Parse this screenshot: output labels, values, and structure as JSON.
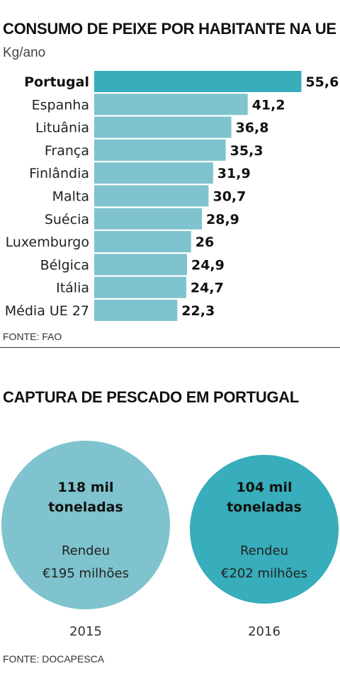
{
  "chart_data": [
    {
      "type": "bar",
      "orientation": "horizontal",
      "title": "CONSUMO DE PEIXE POR HABITANTE NA UE",
      "unit": "Kg/ano",
      "categories": [
        "Portugal",
        "Espanha",
        "Lituânia",
        "França",
        "Finlândia",
        "Malta",
        "Suécia",
        "Luxemburgo",
        "Bélgica",
        "Itália",
        "Média UE 27"
      ],
      "values": [
        55.6,
        41.2,
        36.8,
        35.3,
        31.9,
        30.7,
        28.9,
        26,
        24.9,
        24.7,
        22.3
      ],
      "value_labels": [
        "55,6",
        "41,2",
        "36,8",
        "35,3",
        "31,9",
        "30,7",
        "28,9",
        "26",
        "24,9",
        "24,7",
        "22,3"
      ],
      "highlight": "Portugal",
      "grid": false,
      "source": "FONTE: FAO"
    },
    {
      "type": "bubble",
      "title": "CAPTURA DE PESCADO EM PORTUGAL",
      "items": [
        {
          "year": "2015",
          "amount_line1": "118 mil",
          "amount_line2": "toneladas",
          "note_line1": "Rendeu",
          "note_line2": "€195 milhões",
          "tonnes_thousands": 118,
          "revenue_million_eur": 195
        },
        {
          "year": "2016",
          "amount_line1": "104 mil",
          "amount_line2": "toneladas",
          "note_line1": "Rendeu",
          "note_line2": "€202 milhões",
          "tonnes_thousands": 104,
          "revenue_million_eur": 202
        }
      ],
      "source": "FONTE: DOCAPESCA"
    }
  ],
  "colors": {
    "bar": "#7ec3cd",
    "bar_highlight": "#38adbb",
    "circle_2015": "#7ec3cd",
    "circle_2016": "#38adbb"
  }
}
